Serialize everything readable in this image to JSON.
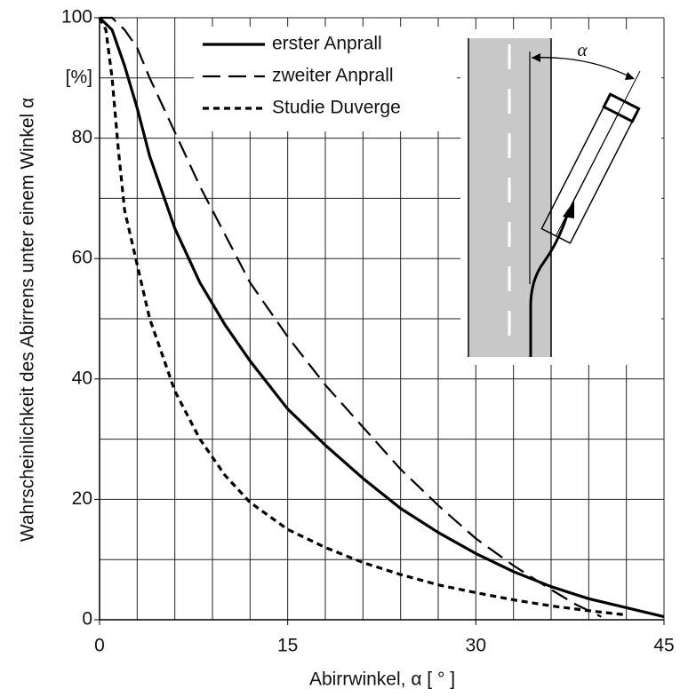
{
  "chart_data": {
    "type": "line",
    "xlabel": "Abirrwinkel, α [ ° ]",
    "ylabel": "Wahrscheinlichkeit des Abirrens unter einem Winkel α",
    "y_unit": "[%]",
    "inset_label": "α",
    "xlim": [
      0,
      45
    ],
    "ylim": [
      0,
      100
    ],
    "xticks": [
      0,
      15,
      30,
      45
    ],
    "yticks": [
      0,
      20,
      40,
      60,
      80,
      100
    ],
    "xgrid": [
      3,
      6,
      9,
      12,
      15,
      18,
      21,
      24,
      27,
      30,
      33,
      36,
      39,
      42,
      45
    ],
    "ygrid": [
      10,
      20,
      30,
      40,
      50,
      60,
      70,
      80,
      90,
      100
    ],
    "legend": "upper center",
    "series": [
      {
        "name": "erster Anprall",
        "color": "#000000",
        "style": "solid",
        "x": [
          0,
          1,
          2,
          3,
          4,
          5,
          6,
          8,
          10,
          12,
          15,
          18,
          21,
          24,
          27,
          30,
          33,
          36,
          39,
          42,
          45
        ],
        "values": [
          100,
          98,
          92,
          85,
          77,
          71,
          65,
          56,
          49,
          43,
          35,
          29,
          23.5,
          18.5,
          14.5,
          11,
          8,
          5.5,
          3.5,
          2,
          0.5
        ]
      },
      {
        "name": "zweiter Anprall",
        "color": "#000000",
        "style": "long-dash",
        "x": [
          0,
          1,
          2,
          3,
          4,
          6,
          8,
          10,
          12,
          15,
          18,
          21,
          24,
          27,
          30,
          33,
          36,
          38,
          39,
          40
        ],
        "values": [
          100,
          100,
          98,
          95,
          90,
          81,
          72,
          64,
          56,
          47,
          39,
          32,
          25,
          19,
          13.5,
          9,
          5,
          2.5,
          1.5,
          0.5
        ]
      },
      {
        "name": "Studie Duverge",
        "color": "#000000",
        "style": "short-dash",
        "x": [
          0,
          0.5,
          1,
          1.5,
          2,
          3,
          4,
          5,
          6,
          8,
          10,
          12,
          15,
          18,
          21,
          24,
          27,
          30,
          33,
          36,
          39,
          42
        ],
        "values": [
          100,
          98,
          90,
          78,
          68,
          59,
          50,
          44,
          38,
          30,
          24,
          19.5,
          15,
          12,
          9.5,
          7.5,
          5.8,
          4.5,
          3.3,
          2.3,
          1.5,
          0.8
        ]
      }
    ]
  }
}
